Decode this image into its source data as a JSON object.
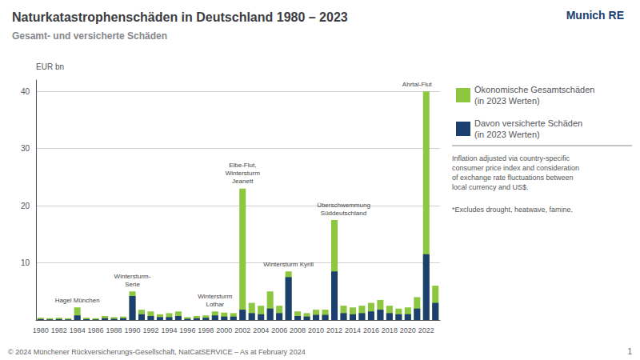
{
  "chart_data": {
    "type": "bar",
    "title": "Naturkatastrophenschäden in Deutschland 1980 – 2023",
    "subtitle": "Gesamt- und versicherte Schäden",
    "ylabel": "EUR bn",
    "categories": [
      1980,
      null,
      1982,
      null,
      1984,
      null,
      1986,
      null,
      1988,
      null,
      1990,
      null,
      1992,
      null,
      1994,
      null,
      1996,
      null,
      1998,
      null,
      2000,
      null,
      2002,
      null,
      2004,
      null,
      2006,
      null,
      2008,
      null,
      2010,
      null,
      2012,
      null,
      2014,
      null,
      2016,
      null,
      2018,
      null,
      2020,
      null,
      2022,
      null
    ],
    "series": [
      {
        "name": "Ökonomische Gesamtschäden\n(in 2023 Werten)",
        "color": "#8dc63f",
        "values": [
          0.4,
          0.3,
          0.4,
          0.3,
          2.2,
          0.4,
          0.3,
          0.7,
          0.5,
          0.6,
          5.0,
          1.8,
          1.5,
          1.0,
          1.2,
          1.5,
          0.5,
          0.7,
          0.8,
          1.5,
          1.3,
          1.2,
          23.0,
          3.0,
          2.5,
          5.0,
          2.5,
          8.5,
          1.5,
          1.2,
          1.8,
          1.8,
          17.5,
          2.5,
          2.2,
          2.5,
          3.0,
          3.5,
          2.5,
          2.0,
          2.2,
          4.0,
          40.0,
          6.0
        ]
      },
      {
        "name": "Davon versicherte Schäden\n(in 2023 Werten)",
        "color": "#1b3f6e",
        "values": [
          0.15,
          0.1,
          0.15,
          0.1,
          0.8,
          0.15,
          0.1,
          0.3,
          0.2,
          0.3,
          4.2,
          1.0,
          0.7,
          0.5,
          0.5,
          0.7,
          0.2,
          0.3,
          0.4,
          0.8,
          0.6,
          0.6,
          1.8,
          1.2,
          1.0,
          2.0,
          1.2,
          7.5,
          0.7,
          0.6,
          0.9,
          0.9,
          8.5,
          1.2,
          1.0,
          1.2,
          1.5,
          1.8,
          1.2,
          1.0,
          1.0,
          2.0,
          11.5,
          3.0
        ]
      }
    ],
    "stacked": false,
    "ylim": [
      0,
      42
    ],
    "yticks": [
      10,
      20,
      30,
      40
    ],
    "grid": true,
    "legend": "right",
    "annotations": [
      null,
      null,
      null,
      null,
      "Hagel München",
      null,
      null,
      null,
      null,
      null,
      "Wintersturm-\nSerie",
      null,
      null,
      null,
      null,
      null,
      null,
      null,
      null,
      "Wintersturm\nLothar",
      null,
      null,
      "Elbe-Flut,\nWintersturm\nJeanett",
      null,
      null,
      null,
      null,
      "Wintersturm Kyrill",
      null,
      null,
      null,
      null,
      null,
      "Überschwemmung\nSüddeutschland",
      null,
      null,
      null,
      null,
      null,
      null,
      null,
      "Ahrtal-Flut",
      null,
      null
    ],
    "notes": [
      "Inflation adjusted via country-specific\nconsumer price index and consideration\nof exchange rate fluctuations between\nlocal currency and US$.",
      "*Excludes drought, heatwave, famine."
    ],
    "logo_text": "Munich RE",
    "footer": "© 2024 Münchener Rückversicherungs-Gesellschaft, NatCatSERVICE – As at February 2024",
    "page_number": "1"
  }
}
